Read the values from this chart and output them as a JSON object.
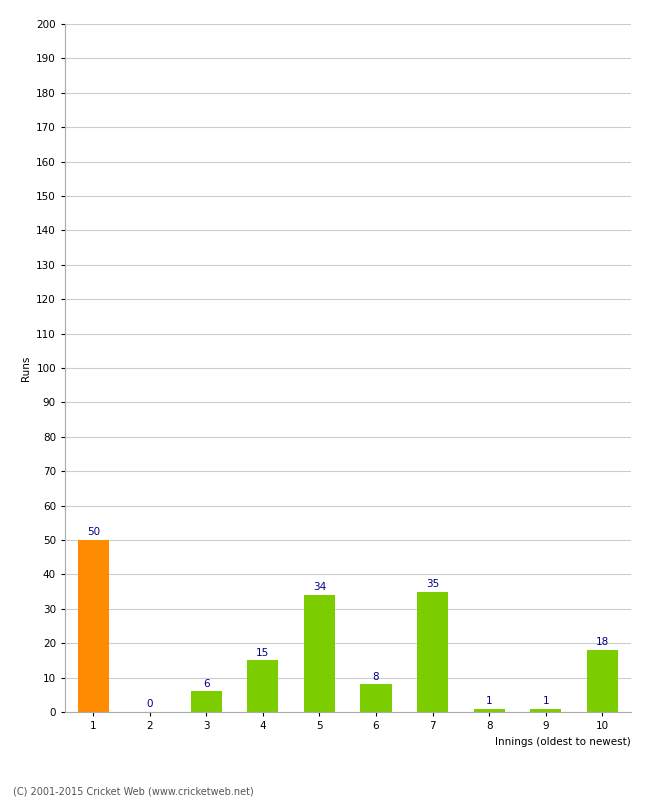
{
  "categories": [
    "1",
    "2",
    "3",
    "4",
    "5",
    "6",
    "7",
    "8",
    "9",
    "10"
  ],
  "values": [
    50,
    0,
    6,
    15,
    34,
    8,
    35,
    1,
    1,
    18
  ],
  "bar_colors": [
    "#ff8c00",
    "#7ccd00",
    "#7ccd00",
    "#7ccd00",
    "#7ccd00",
    "#7ccd00",
    "#7ccd00",
    "#7ccd00",
    "#7ccd00",
    "#7ccd00"
  ],
  "xlabel": "Innings (oldest to newest)",
  "ylabel": "Runs",
  "ylim": [
    0,
    200
  ],
  "yticks": [
    0,
    10,
    20,
    30,
    40,
    50,
    60,
    70,
    80,
    90,
    100,
    110,
    120,
    130,
    140,
    150,
    160,
    170,
    180,
    190,
    200
  ],
  "footer": "(C) 2001-2015 Cricket Web (www.cricketweb.net)",
  "label_color": "#00008b",
  "label_fontsize": 7.5,
  "axis_label_fontsize": 7.5,
  "tick_fontsize": 7.5,
  "background_color": "#ffffff",
  "grid_color": "#cccccc"
}
